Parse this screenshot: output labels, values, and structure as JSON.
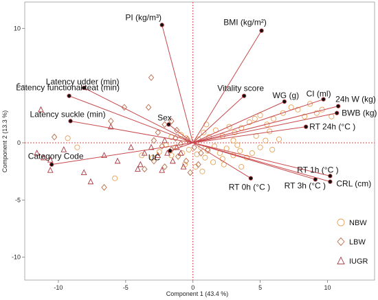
{
  "chart_data": {
    "type": "scatter",
    "subtype": "pca-biplot",
    "xlabel": "Component 1 (43.4 %)",
    "ylabel": "Component 2 (13.3 %)",
    "xlim": [
      -12.5,
      13.5
    ],
    "ylim": [
      -12,
      12.3
    ],
    "xticks": [
      -10,
      -5,
      0,
      5,
      10
    ],
    "yticks": [
      -10,
      -5,
      0,
      5,
      10
    ],
    "reference_lines": {
      "x": 0,
      "y": 0,
      "style": "dotted",
      "color": "#d6484a"
    },
    "grid": false,
    "legend_position": "bottom-right",
    "colors": {
      "arrow": "#c8474b",
      "loading_point": "#111111"
    },
    "loadings": [
      {
        "label": "PI (kg/m³)",
        "x": -2.3,
        "y": 10.3
      },
      {
        "label": "BMI (kg/m²)",
        "x": 5.1,
        "y": 9.8
      },
      {
        "label": "Latency udder (min)",
        "x": -8.1,
        "y": 4.8
      },
      {
        "label": "Latency functional teat (min)",
        "x": -9.2,
        "y": 4.1
      },
      {
        "label": "Latency suckle (min)",
        "x": -9.1,
        "y": 1.9
      },
      {
        "label": "Sex",
        "x": -1.8,
        "y": 1.6
      },
      {
        "label": "Category Code",
        "x": -10.5,
        "y": -1.9
      },
      {
        "label": "UC",
        "x": -1.7,
        "y": -0.7
      },
      {
        "label": "Vitality score",
        "x": 3.8,
        "y": 4.1
      },
      {
        "label": "WG (g)",
        "x": 6.8,
        "y": 3.6
      },
      {
        "label": "CI (ml)",
        "x": 9.7,
        "y": 3.8
      },
      {
        "label": "24h W (kg)",
        "x": 10.8,
        "y": 3.2
      },
      {
        "label": "BWB (kg)",
        "x": 10.7,
        "y": 2.6
      },
      {
        "label": "RT 24h (°C )",
        "x": 8.4,
        "y": 1.4
      },
      {
        "label": "RT 0h (°C )",
        "x": 4.3,
        "y": -3.1
      },
      {
        "label": "RT 1h (°C )",
        "x": 10.2,
        "y": -2.9
      },
      {
        "label": "RT 3h (°C )",
        "x": 9.1,
        "y": -3.2
      },
      {
        "label": "CRL (cm)",
        "x": 10.2,
        "y": -3.4
      }
    ],
    "series": [
      {
        "name": "NBW",
        "marker": "circle",
        "color": "#e8a154",
        "points": [
          [
            4.2,
            1.8
          ],
          [
            4.6,
            2.1
          ],
          [
            5.0,
            2.4
          ],
          [
            5.5,
            1.6
          ],
          [
            6.0,
            2.1
          ],
          [
            6.7,
            2.6
          ],
          [
            7.3,
            3.1
          ],
          [
            7.8,
            2.9
          ],
          [
            8.3,
            2.3
          ],
          [
            8.7,
            3.4
          ],
          [
            9.2,
            2.6
          ],
          [
            9.6,
            2.9
          ],
          [
            10.3,
            2.3
          ],
          [
            3.6,
            1.3
          ],
          [
            3.1,
            0.9
          ],
          [
            2.7,
            1.4
          ],
          [
            2.2,
            0.6
          ],
          [
            1.7,
            1.1
          ],
          [
            1.2,
            0.5
          ],
          [
            0.8,
            0.9
          ],
          [
            0.4,
            0.3
          ],
          [
            0.6,
            -0.4
          ],
          [
            1.1,
            -0.7
          ],
          [
            1.6,
            -0.3
          ],
          [
            2.0,
            -0.9
          ],
          [
            2.5,
            -0.5
          ],
          [
            3.0,
            -1.1
          ],
          [
            3.5,
            -0.7
          ],
          [
            4.0,
            -1.3
          ],
          [
            4.4,
            -0.9
          ],
          [
            5.0,
            -0.4
          ],
          [
            5.4,
            0.2
          ],
          [
            5.9,
            -0.6
          ],
          [
            6.4,
            0.3
          ],
          [
            3.0,
            0.2
          ],
          [
            3.3,
            -0.2
          ],
          [
            4.7,
            0.6
          ],
          [
            2.2,
            -1.4
          ],
          [
            1.5,
            -1.7
          ],
          [
            0.9,
            -1.3
          ],
          [
            0.3,
            -1.0
          ],
          [
            -0.3,
            -0.6
          ],
          [
            -0.8,
            -0.9
          ],
          [
            -1.3,
            -0.4
          ],
          [
            -1.6,
            -1.1
          ],
          [
            -0.5,
            0.4
          ],
          [
            -0.9,
            0.7
          ],
          [
            -1.6,
            0.5
          ],
          [
            -2.0,
            -0.2
          ],
          [
            -2.5,
            -0.8
          ],
          [
            -3.0,
            -1.3
          ],
          [
            -3.8,
            -1.1
          ],
          [
            -5.8,
            -3.1
          ],
          [
            -9.3,
            0.4
          ],
          [
            -8.6,
            -0.4
          ],
          [
            0.2,
            -2.1
          ],
          [
            -0.6,
            -1.9
          ],
          [
            2.3,
            -1.9
          ],
          [
            3.6,
            -2.1
          ],
          [
            1.0,
            1.6
          ],
          [
            0.7,
            -2.5
          ],
          [
            5.7,
            1.0
          ]
        ]
      },
      {
        "name": "LBW",
        "marker": "diamond",
        "color": "#b86a45",
        "points": [
          [
            -3.1,
            5.7
          ],
          [
            -5.1,
            3.1
          ],
          [
            -3.3,
            3.1
          ],
          [
            -2.1,
            1.6
          ],
          [
            -1.6,
            1.9
          ],
          [
            -2.6,
            0.9
          ],
          [
            -1.3,
            0.4
          ],
          [
            -0.9,
            -0.1
          ],
          [
            -0.4,
            0.3
          ],
          [
            0.1,
            -0.4
          ],
          [
            0.6,
            -0.9
          ],
          [
            1.1,
            -0.6
          ],
          [
            -1.1,
            -1.2
          ],
          [
            -1.6,
            -0.6
          ],
          [
            -2.3,
            -0.3
          ],
          [
            -2.9,
            0.2
          ],
          [
            -0.5,
            -1.6
          ],
          [
            0.4,
            -1.9
          ],
          [
            -0.2,
            -2.6
          ],
          [
            -2.1,
            -2.1
          ],
          [
            -3.6,
            -2.3
          ],
          [
            -6.6,
            -3.9
          ],
          [
            -10.3,
            0.5
          ],
          [
            -6.1,
            1.9
          ],
          [
            -2.9,
            -1.6
          ],
          [
            -1.2,
            1.1
          ]
        ]
      },
      {
        "name": "IUGR",
        "marker": "triangle",
        "color": "#a8373f",
        "points": [
          [
            -11.6,
            -0.9
          ],
          [
            -11.1,
            -1.3
          ],
          [
            -10.6,
            -2.4
          ],
          [
            -9.6,
            -0.6
          ],
          [
            -8.1,
            -2.6
          ],
          [
            -7.6,
            -3.4
          ],
          [
            -6.1,
            1.4
          ],
          [
            -5.6,
            -1.6
          ],
          [
            -4.6,
            -0.4
          ],
          [
            -4.1,
            -2.3
          ],
          [
            -3.6,
            -0.9
          ],
          [
            -3.1,
            -0.4
          ],
          [
            -2.6,
            -1.1
          ],
          [
            -2.3,
            -2.4
          ],
          [
            -1.9,
            -0.9
          ],
          [
            -1.5,
            -1.6
          ],
          [
            -1.2,
            -0.4
          ],
          [
            -2.1,
            0.2
          ],
          [
            -0.7,
            -2.1
          ],
          [
            -0.9,
            -0.9
          ],
          [
            -6.6,
            -1.1
          ],
          [
            -10.6,
            -1.5
          ],
          [
            -3.9,
            -1.9
          ],
          [
            -11.3,
            2.9
          ]
        ]
      }
    ]
  }
}
